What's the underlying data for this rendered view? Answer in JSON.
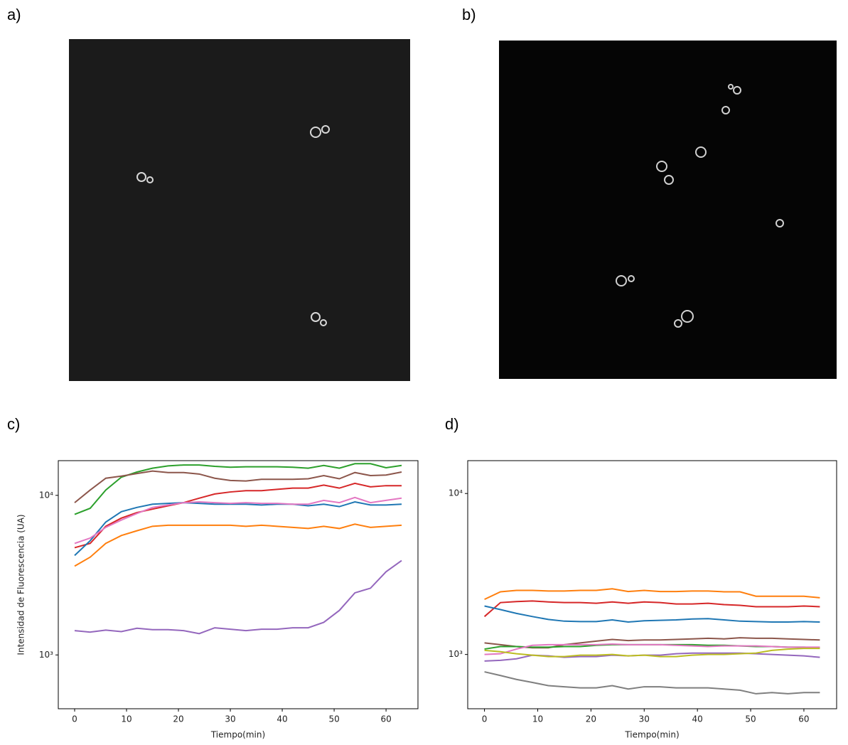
{
  "panel_labels": [
    "a)",
    "b)",
    "c)",
    "d)"
  ],
  "chart_data": [
    {
      "type": "line",
      "xlabel": "Tiempo(min)",
      "ylabel": "Intensidad de Fluorescencia (UA)",
      "yscale": "log",
      "xlim": [
        -3.15,
        66.15
      ],
      "ylim": [
        460,
        16500
      ],
      "xticks": [
        0,
        10,
        20,
        30,
        40,
        50,
        60
      ],
      "yticks": [
        {
          "value": 1000,
          "label": "10³"
        },
        {
          "value": 10000,
          "label": "10⁴"
        }
      ],
      "x": [
        0,
        3,
        6,
        9,
        12,
        15,
        18,
        21,
        24,
        27,
        30,
        33,
        36,
        39,
        42,
        45,
        48,
        51,
        54,
        57,
        60,
        63
      ],
      "series": [
        {
          "color": "#2ca02c",
          "values": [
            7600,
            8300,
            10800,
            13000,
            14000,
            14800,
            15300,
            15500,
            15500,
            15200,
            15000,
            15100,
            15100,
            15100,
            15000,
            14800,
            15400,
            14800,
            15800,
            15800,
            14900,
            15400
          ]
        },
        {
          "color": "#8c564b",
          "values": [
            9000,
            10800,
            12800,
            13200,
            13700,
            14200,
            13900,
            13900,
            13600,
            12800,
            12400,
            12300,
            12600,
            12600,
            12600,
            12700,
            13300,
            12700,
            13900,
            13300,
            13400,
            14000
          ]
        },
        {
          "color": "#d62728",
          "values": [
            4700,
            5000,
            6400,
            7200,
            7800,
            8200,
            8600,
            9000,
            9600,
            10200,
            10500,
            10700,
            10700,
            10900,
            11100,
            11100,
            11600,
            11100,
            11900,
            11300,
            11500,
            11500
          ]
        },
        {
          "color": "#1f77b4",
          "values": [
            4200,
            5200,
            6800,
            7900,
            8400,
            8800,
            8900,
            9000,
            8900,
            8800,
            8800,
            8800,
            8700,
            8800,
            8800,
            8600,
            8800,
            8500,
            9100,
            8700,
            8700,
            8800
          ]
        },
        {
          "color": "#e377c2",
          "values": [
            5000,
            5400,
            6300,
            7000,
            7700,
            8400,
            8700,
            9000,
            9100,
            9000,
            8900,
            9000,
            8900,
            8900,
            8800,
            8800,
            9300,
            9000,
            9700,
            9000,
            9300,
            9600
          ]
        },
        {
          "color": "#ff7f0e",
          "values": [
            3600,
            4100,
            5000,
            5600,
            6000,
            6400,
            6500,
            6500,
            6500,
            6500,
            6500,
            6400,
            6500,
            6400,
            6300,
            6200,
            6400,
            6200,
            6600,
            6300,
            6400,
            6500
          ]
        },
        {
          "color": "#9467bd",
          "values": [
            1420,
            1390,
            1430,
            1400,
            1470,
            1440,
            1440,
            1420,
            1360,
            1480,
            1450,
            1420,
            1450,
            1450,
            1480,
            1480,
            1600,
            1900,
            2450,
            2620,
            3320,
            3900
          ]
        }
      ]
    },
    {
      "type": "line",
      "xlabel": "Tiempo(min)",
      "yscale": "log",
      "xlim": [
        -3.15,
        66.15
      ],
      "ylim": [
        460,
        16000
      ],
      "xticks": [
        0,
        10,
        20,
        30,
        40,
        50,
        60
      ],
      "yticks": [
        {
          "value": 1000,
          "label": "10³"
        },
        {
          "value": 10000,
          "label": "10⁴"
        }
      ],
      "x": [
        0,
        3,
        6,
        9,
        12,
        15,
        18,
        21,
        24,
        27,
        30,
        33,
        36,
        39,
        42,
        45,
        48,
        51,
        54,
        57,
        60,
        63
      ],
      "series": [
        {
          "color": "#ff7f0e",
          "values": [
            2200,
            2450,
            2500,
            2500,
            2480,
            2480,
            2500,
            2500,
            2560,
            2460,
            2500,
            2460,
            2460,
            2480,
            2480,
            2450,
            2450,
            2300,
            2300,
            2300,
            2300,
            2250
          ]
        },
        {
          "color": "#d62728",
          "values": [
            1720,
            2100,
            2130,
            2150,
            2120,
            2100,
            2100,
            2080,
            2120,
            2080,
            2120,
            2100,
            2060,
            2060,
            2080,
            2040,
            2020,
            1980,
            1980,
            1980,
            2000,
            1980
          ]
        },
        {
          "color": "#1f77b4",
          "values": [
            2000,
            1900,
            1800,
            1720,
            1650,
            1610,
            1600,
            1600,
            1640,
            1590,
            1620,
            1630,
            1640,
            1660,
            1670,
            1640,
            1610,
            1600,
            1590,
            1590,
            1600,
            1590
          ]
        },
        {
          "color": "#8c564b",
          "values": [
            1180,
            1150,
            1120,
            1100,
            1100,
            1150,
            1180,
            1210,
            1240,
            1220,
            1230,
            1230,
            1240,
            1250,
            1260,
            1250,
            1270,
            1260,
            1260,
            1250,
            1240,
            1230
          ]
        },
        {
          "color": "#2ca02c",
          "values": [
            1080,
            1120,
            1120,
            1110,
            1110,
            1120,
            1120,
            1140,
            1150,
            1150,
            1150,
            1150,
            1150,
            1150,
            1140,
            1140,
            1130,
            1120,
            1120,
            1110,
            1110,
            1100
          ]
        },
        {
          "color": "#e377c2",
          "values": [
            1000,
            1010,
            1080,
            1140,
            1150,
            1150,
            1150,
            1150,
            1160,
            1150,
            1150,
            1150,
            1140,
            1130,
            1120,
            1130,
            1130,
            1130,
            1120,
            1110,
            1110,
            1110
          ]
        },
        {
          "color": "#9467bd",
          "values": [
            910,
            920,
            940,
            990,
            980,
            960,
            970,
            970,
            990,
            980,
            990,
            990,
            1010,
            1020,
            1020,
            1020,
            1020,
            1010,
            1000,
            990,
            980,
            960
          ]
        },
        {
          "color": "#bcbd22",
          "values": [
            1060,
            1040,
            1010,
            990,
            970,
            970,
            990,
            990,
            1000,
            980,
            990,
            970,
            970,
            990,
            1000,
            1000,
            1010,
            1020,
            1060,
            1080,
            1090,
            1090
          ]
        },
        {
          "color": "#7f7f7f",
          "values": [
            780,
            740,
            700,
            670,
            640,
            630,
            620,
            620,
            640,
            610,
            630,
            630,
            620,
            620,
            620,
            610,
            600,
            570,
            580,
            570,
            580,
            580
          ]
        }
      ]
    }
  ]
}
